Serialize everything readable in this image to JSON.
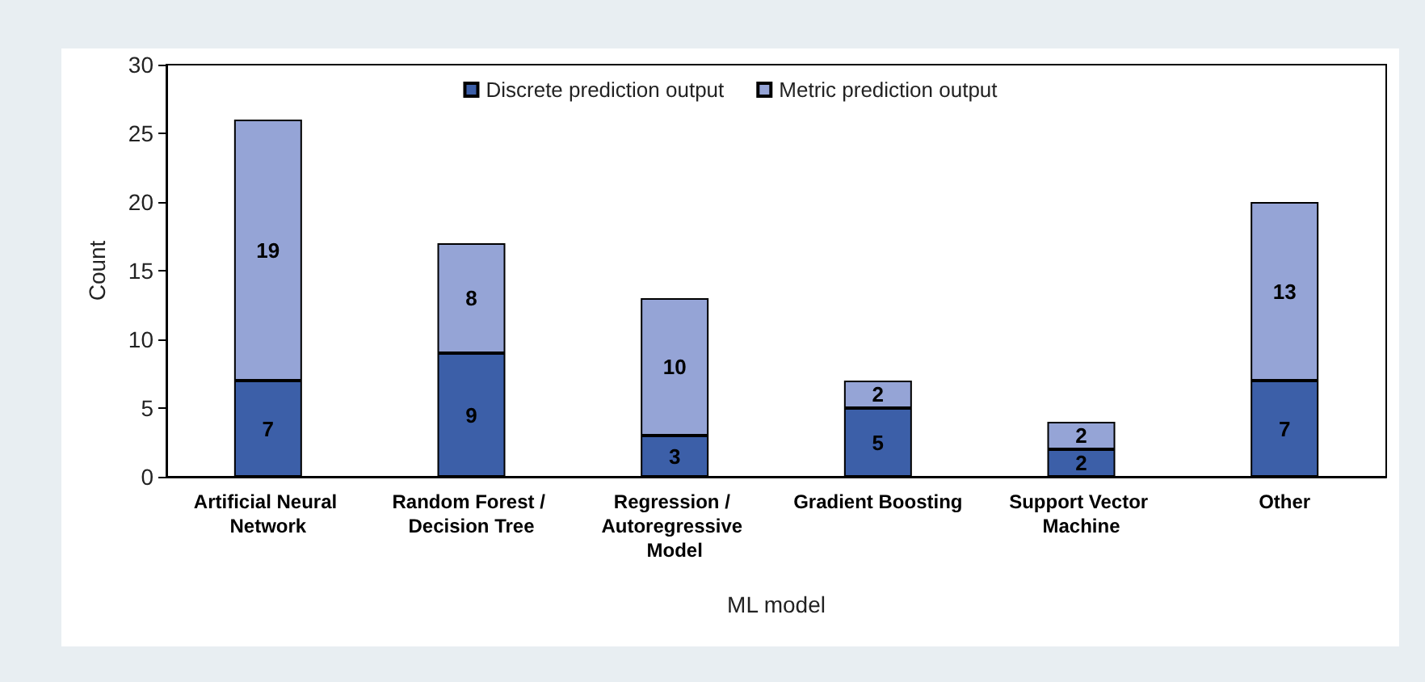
{
  "chart_data": {
    "type": "bar",
    "stacked": true,
    "xlabel": "ML model",
    "ylabel": "Count",
    "categories": [
      "Artificial Neural Network",
      "Random Forest / Decision Tree",
      "Regression / Autoregressive Model",
      "Gradient Boosting",
      "Support Vector Machine",
      "Other"
    ],
    "series": [
      {
        "name": "Discrete prediction output",
        "color": "#3c5fa8",
        "values": [
          7,
          9,
          3,
          5,
          2,
          7
        ]
      },
      {
        "name": "Metric prediction output",
        "color": "#95a4d6",
        "values": [
          19,
          8,
          10,
          2,
          2,
          13
        ]
      }
    ],
    "ylim": [
      0,
      30
    ],
    "yticks": [
      0,
      5,
      10,
      15,
      20,
      25,
      30
    ],
    "grid": false,
    "legend": "top",
    "data_labels": true
  }
}
